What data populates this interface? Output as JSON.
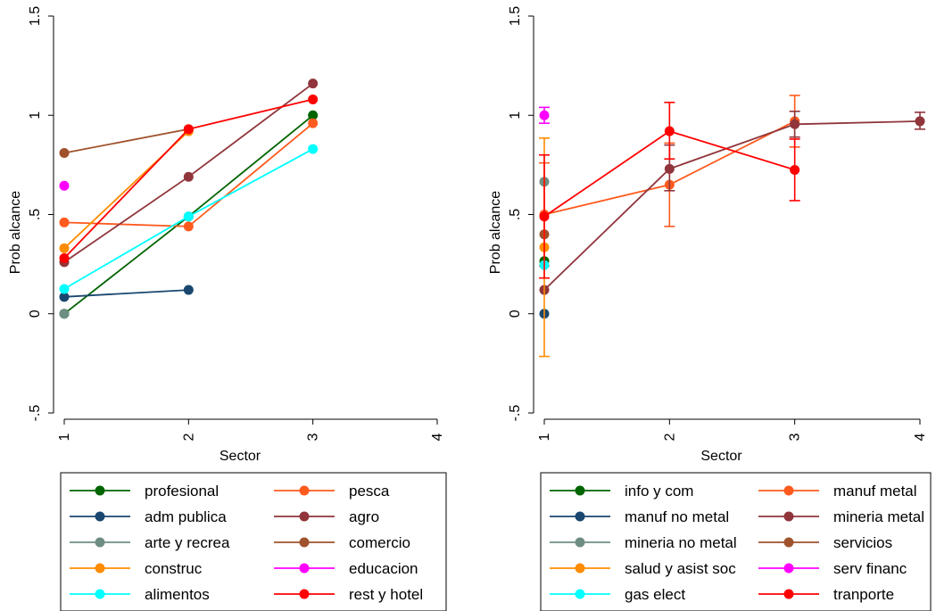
{
  "chart_data": [
    {
      "type": "line",
      "xlabel": "Sector",
      "ylabel": "Prob alcance",
      "xlim": [
        1,
        4
      ],
      "ylim": [
        -0.5,
        1.5
      ],
      "xticks": [
        "1",
        "2",
        "3",
        "4"
      ],
      "yticks": [
        "-.5",
        "0",
        ".5",
        "1",
        "1.5"
      ],
      "grid": false,
      "legend_position": "bottom",
      "series": [
        {
          "name": "profesional",
          "color": "#006400",
          "points": [
            [
              1,
              0.0
            ],
            [
              2,
              0.49
            ],
            [
              3,
              1.0
            ]
          ]
        },
        {
          "name": "pesca",
          "color": "#ff5a1e",
          "points": [
            [
              1,
              0.46
            ],
            [
              2,
              0.44
            ],
            [
              3,
              0.96
            ]
          ]
        },
        {
          "name": "adm publica",
          "color": "#1a476f",
          "points": [
            [
              1,
              0.085
            ],
            [
              2,
              0.12
            ]
          ]
        },
        {
          "name": "agro",
          "color": "#90353b",
          "points": [
            [
              1,
              0.26
            ],
            [
              2,
              0.69
            ],
            [
              3,
              1.16
            ]
          ]
        },
        {
          "name": "arte y recrea",
          "color": "#6e8e84",
          "points": [
            [
              1,
              0.0
            ]
          ]
        },
        {
          "name": "comercio",
          "color": "#a0522d",
          "points": [
            [
              1,
              0.81
            ],
            [
              2,
              0.93
            ]
          ]
        },
        {
          "name": "construc",
          "color": "#ff8c00",
          "points": [
            [
              1,
              0.33
            ],
            [
              2,
              0.92
            ]
          ]
        },
        {
          "name": "educacion",
          "color": "#ff00ff",
          "points": [
            [
              1,
              0.645
            ]
          ]
        },
        {
          "name": "alimentos",
          "color": "#00ffff",
          "points": [
            [
              1,
              0.125
            ],
            [
              2,
              0.49
            ],
            [
              3,
              0.83
            ]
          ]
        },
        {
          "name": "rest y hotel",
          "color": "#ff0000",
          "points": [
            [
              1,
              0.28
            ],
            [
              2,
              0.93
            ],
            [
              3,
              1.08
            ]
          ]
        }
      ]
    },
    {
      "type": "line",
      "xlabel": "Sector",
      "ylabel": "Prob alcance",
      "xlim": [
        1,
        4
      ],
      "ylim": [
        -0.5,
        1.5
      ],
      "xticks": [
        "1",
        "2",
        "3",
        "4"
      ],
      "yticks": [
        "-.5",
        "0",
        ".5",
        "1",
        "1.5"
      ],
      "grid": false,
      "legend_position": "bottom",
      "series": [
        {
          "name": "info y com",
          "color": "#006400",
          "points": [
            [
              1,
              0.265
            ]
          ]
        },
        {
          "name": "manuf metal",
          "color": "#ff5a1e",
          "points": [
            [
              1,
              0.5
            ],
            [
              2,
              0.65
            ],
            [
              3,
              0.97
            ]
          ],
          "ci": [
            [
              0.24,
              0.76
            ],
            [
              0.44,
              0.86
            ],
            [
              0.84,
              1.1
            ]
          ]
        },
        {
          "name": "manuf no metal",
          "color": "#1a476f",
          "points": [
            [
              1,
              0.0
            ]
          ]
        },
        {
          "name": "mineria metal",
          "color": "#90353b",
          "points": [
            [
              1,
              0.12
            ],
            [
              2,
              0.73
            ],
            [
              3,
              0.955
            ],
            [
              4,
              0.97
            ]
          ],
          "ci": [
            null,
            [
              0.62,
              0.85
            ],
            [
              0.89,
              1.02
            ],
            [
              0.93,
              1.015
            ]
          ]
        },
        {
          "name": "mineria no metal",
          "color": "#6e8e84",
          "points": [
            [
              1,
              0.665
            ]
          ]
        },
        {
          "name": "servicios",
          "color": "#a0522d",
          "points": [
            [
              1,
              0.4
            ]
          ]
        },
        {
          "name": "salud y asist soc",
          "color": "#ff8c00",
          "points": [
            [
              1,
              0.335
            ]
          ],
          "ci": [
            [
              -0.215,
              0.885
            ]
          ]
        },
        {
          "name": "serv financ",
          "color": "#ff00ff",
          "points": [
            [
              1,
              1.0
            ]
          ],
          "ci": [
            [
              0.96,
              1.04
            ]
          ]
        },
        {
          "name": "gas elect",
          "color": "#00ffff",
          "points": [
            [
              1,
              0.245
            ]
          ]
        },
        {
          "name": "tranporte",
          "color": "#ff0000",
          "points": [
            [
              1,
              0.49
            ],
            [
              2,
              0.92
            ],
            [
              3,
              0.725
            ]
          ],
          "ci": [
            [
              0.18,
              0.8
            ],
            [
              0.78,
              1.065
            ],
            [
              0.57,
              0.88
            ]
          ]
        }
      ]
    }
  ]
}
